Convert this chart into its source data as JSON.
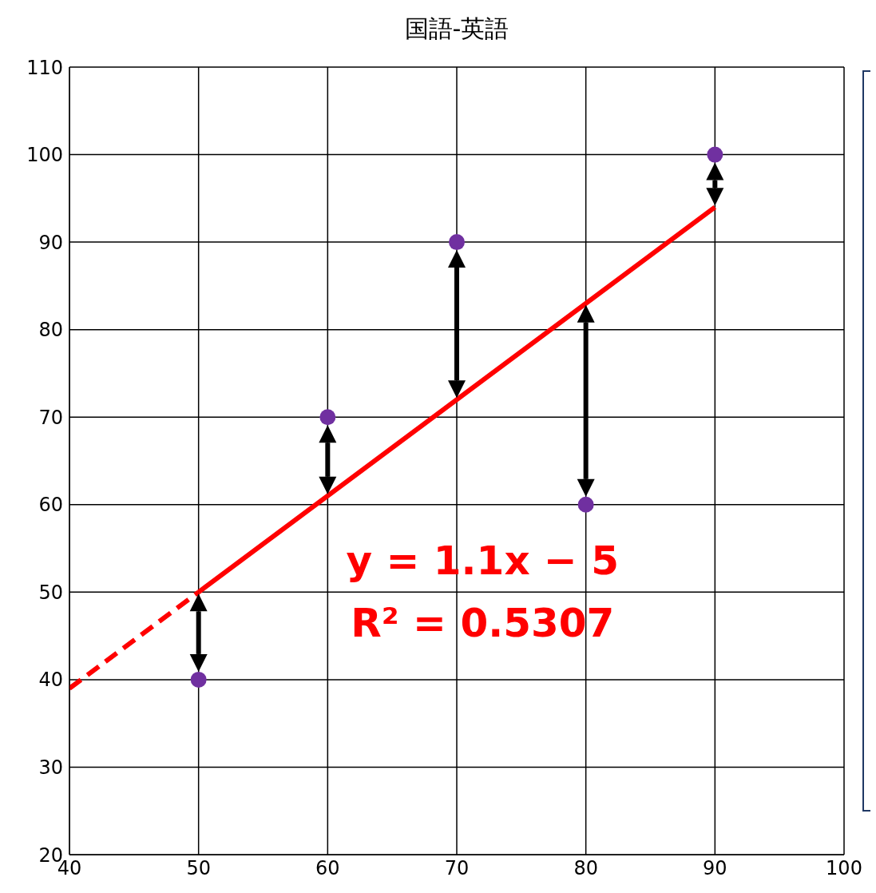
{
  "chart_data": {
    "type": "scatter",
    "title": "国語-英語",
    "xlim": [
      40,
      100
    ],
    "xticks": [
      40,
      50,
      60,
      70,
      80,
      90,
      100
    ],
    "ylim": [
      20,
      110
    ],
    "yticks": [
      20,
      30,
      40,
      50,
      60,
      70,
      80,
      90,
      100,
      110
    ],
    "grid": true,
    "legend": false,
    "marker": "circle",
    "series": [
      {
        "color": "#7030a0",
        "x": [
          50,
          60,
          70,
          80,
          90
        ],
        "values": [
          40,
          70,
          90,
          60,
          100
        ]
      },
      {
        "type": "line",
        "color": "#ff0000",
        "line_style": "solid",
        "marker": "none",
        "x": [
          50,
          90
        ],
        "values": [
          50,
          94
        ]
      },
      {
        "type": "line",
        "color": "#ff0000",
        "line_style": "dashed",
        "marker": "none",
        "x": [
          40,
          50
        ],
        "values": [
          39,
          50
        ]
      }
    ],
    "annotations": [
      "y = 1.1x − 5",
      "R² = 0.5307"
    ]
  }
}
